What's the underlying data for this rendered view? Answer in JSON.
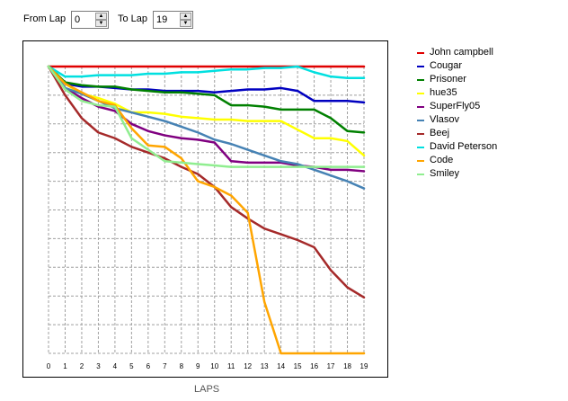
{
  "controls": {
    "from_label": "From Lap",
    "from_value": "0",
    "to_label": "To Lap",
    "to_value": "19",
    "up_glyph": "▲",
    "down_glyph": "▼"
  },
  "chart_data": {
    "type": "line",
    "xlabel": "LAPS",
    "ylabel": "",
    "x_ticks": [
      0,
      1,
      2,
      3,
      4,
      5,
      6,
      7,
      8,
      9,
      10,
      11,
      12,
      13,
      14,
      15,
      16,
      17,
      18,
      19
    ],
    "xlim": [
      0,
      19
    ],
    "ylim": [
      0,
      10
    ],
    "grid": true,
    "legend_position": "right",
    "series": [
      {
        "name": "John campbell",
        "color": "#e00000",
        "x": [
          0,
          1,
          2,
          3,
          4,
          5,
          6,
          7,
          8,
          9,
          10,
          11,
          12,
          13,
          14,
          15,
          16,
          17,
          18,
          19
        ],
        "values": [
          0,
          0,
          0,
          0,
          0,
          0,
          0,
          0,
          0,
          0,
          0,
          0,
          0,
          0,
          0,
          0,
          0,
          0,
          0,
          0
        ]
      },
      {
        "name": "Cougar",
        "color": "#0000c0",
        "x": [
          0,
          1,
          2,
          3,
          4,
          5,
          6,
          7,
          8,
          9,
          10,
          11,
          12,
          13,
          14,
          15,
          16,
          17,
          18,
          19
        ],
        "values": [
          0,
          0.6,
          0.7,
          0.7,
          0.75,
          0.8,
          0.8,
          0.85,
          0.85,
          0.85,
          0.9,
          0.85,
          0.8,
          0.8,
          0.75,
          0.85,
          1.2,
          1.2,
          1.2,
          1.25
        ]
      },
      {
        "name": "Prisoner",
        "color": "#008000",
        "x": [
          0,
          1,
          2,
          3,
          4,
          5,
          6,
          7,
          8,
          9,
          10,
          11,
          12,
          13,
          14,
          15,
          16,
          17,
          18,
          19
        ],
        "values": [
          0,
          0.55,
          0.65,
          0.7,
          0.7,
          0.8,
          0.85,
          0.9,
          0.9,
          0.95,
          1.0,
          1.35,
          1.35,
          1.4,
          1.5,
          1.5,
          1.5,
          1.8,
          2.25,
          2.3
        ]
      },
      {
        "name": "hue35",
        "color": "#ffff00",
        "x": [
          0,
          1,
          2,
          3,
          4,
          5,
          6,
          7,
          8,
          9,
          10,
          11,
          12,
          13,
          14,
          15,
          16,
          17,
          18,
          19
        ],
        "values": [
          0,
          0.6,
          0.95,
          1.1,
          1.3,
          1.6,
          1.6,
          1.65,
          1.75,
          1.8,
          1.85,
          1.85,
          1.9,
          1.9,
          1.9,
          2.2,
          2.5,
          2.5,
          2.6,
          3.1
        ]
      },
      {
        "name": "SuperFly05",
        "color": "#800080",
        "x": [
          0,
          1,
          2,
          3,
          4,
          5,
          6,
          7,
          8,
          9,
          10,
          11,
          12,
          13,
          14,
          15,
          16,
          17,
          18,
          19
        ],
        "values": [
          0,
          0.75,
          1.1,
          1.4,
          1.55,
          2.0,
          2.25,
          2.4,
          2.5,
          2.55,
          2.65,
          3.3,
          3.35,
          3.35,
          3.35,
          3.45,
          3.5,
          3.6,
          3.6,
          3.65
        ]
      },
      {
        "name": "Vlasov",
        "color": "#4682b4",
        "x": [
          0,
          1,
          2,
          3,
          4,
          5,
          6,
          7,
          8,
          9,
          10,
          11,
          12,
          13,
          14,
          15,
          16,
          17,
          18,
          19
        ],
        "values": [
          0,
          0.75,
          0.95,
          1.2,
          1.45,
          1.6,
          1.75,
          1.9,
          2.1,
          2.3,
          2.55,
          2.7,
          2.9,
          3.1,
          3.3,
          3.4,
          3.6,
          3.8,
          4.0,
          4.25
        ]
      },
      {
        "name": "Beej",
        "color": "#a52a2a",
        "x": [
          0,
          1,
          2,
          3,
          4,
          5,
          6,
          7,
          8,
          9,
          10,
          11,
          12,
          13,
          14,
          15,
          16,
          17,
          18,
          19
        ],
        "values": [
          0,
          1.0,
          1.8,
          2.3,
          2.5,
          2.8,
          3.0,
          3.2,
          3.5,
          3.75,
          4.2,
          4.9,
          5.3,
          5.65,
          5.85,
          6.05,
          6.3,
          7.1,
          7.7,
          8.05
        ]
      },
      {
        "name": "David Peterson",
        "color": "#00e0e0",
        "x": [
          0,
          1,
          2,
          3,
          4,
          5,
          6,
          7,
          8,
          9,
          10,
          11,
          12,
          13,
          14,
          15,
          16,
          17,
          18,
          19
        ],
        "values": [
          0,
          0.35,
          0.35,
          0.3,
          0.3,
          0.3,
          0.25,
          0.25,
          0.2,
          0.2,
          0.15,
          0.1,
          0.1,
          0.05,
          0.05,
          0.0,
          0.2,
          0.35,
          0.4,
          0.4
        ]
      },
      {
        "name": "Code",
        "color": "#ffa500",
        "x": [
          0,
          1,
          2,
          3,
          4,
          5,
          6,
          7,
          8,
          9,
          10,
          11,
          12,
          13,
          14,
          15,
          16,
          17,
          18,
          19
        ],
        "values": [
          0,
          0.6,
          0.9,
          1.2,
          1.35,
          2.15,
          2.75,
          2.8,
          3.2,
          4.0,
          4.2,
          4.5,
          5.1,
          8.2,
          10.0,
          10.0,
          10.0,
          10.0,
          10.0,
          10.0
        ]
      },
      {
        "name": "Smiley",
        "color": "#90ee90",
        "x": [
          0,
          1,
          2,
          3,
          4,
          5,
          6,
          7,
          8,
          9,
          10,
          11,
          12,
          13,
          14,
          15,
          16,
          17,
          18,
          19
        ],
        "values": [
          0,
          0.8,
          1.2,
          1.35,
          1.4,
          2.5,
          2.9,
          3.3,
          3.35,
          3.4,
          3.45,
          3.5,
          3.5,
          3.5,
          3.5,
          3.5,
          3.5,
          3.5,
          3.5,
          3.5
        ]
      }
    ]
  }
}
